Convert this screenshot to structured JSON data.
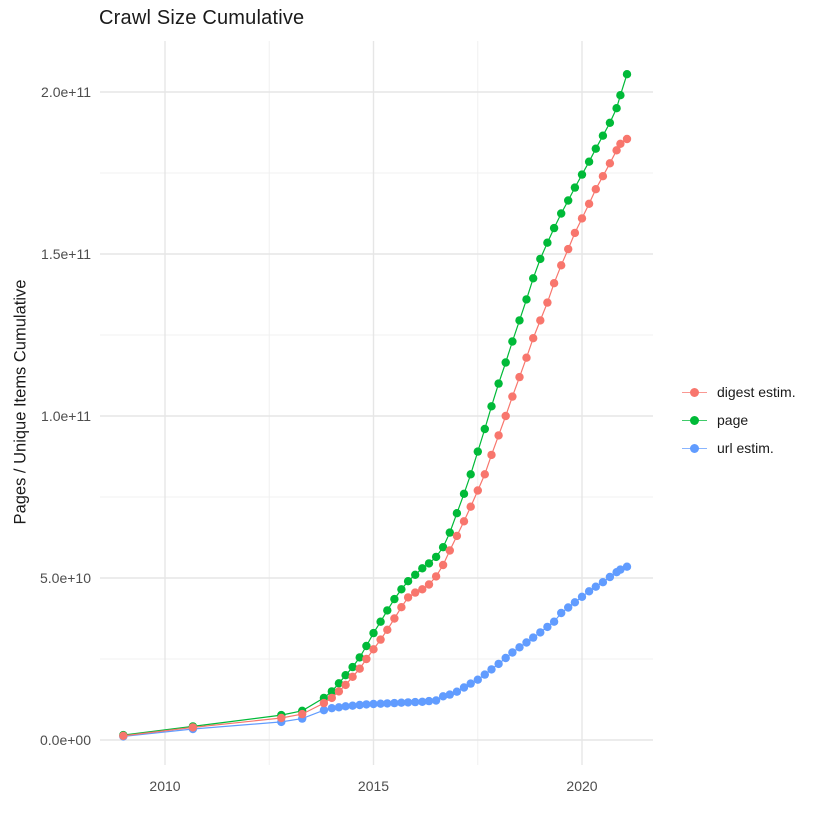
{
  "title": "Crawl Size Cumulative",
  "axes": {
    "x": {
      "major_ticks": [
        {
          "label": "2010",
          "year": 2010
        },
        {
          "label": "2015",
          "year": 2015
        },
        {
          "label": "2020",
          "year": 2020
        }
      ],
      "minor_years": [
        2012.5,
        2017.5
      ]
    },
    "y": {
      "label": "Pages / Unique Items Cumulative",
      "major_ticks": [
        {
          "label": "0.0e+00",
          "value_e9": 0
        },
        {
          "label": "5.0e+10",
          "value_e9": 50
        },
        {
          "label": "1.0e+11",
          "value_e9": 100
        },
        {
          "label": "1.5e+11",
          "value_e9": 150
        },
        {
          "label": "2.0e+11",
          "value_e9": 200
        }
      ],
      "minor_values_e9": [
        25,
        75,
        125,
        175
      ]
    }
  },
  "style": {
    "background": "#FFFFFF",
    "grid_major_color": "#E6E6E6",
    "grid_minor_color": "#F0F0F0",
    "tick_text_color": "#4D4D4D"
  },
  "chart_data": {
    "type": "line",
    "title": "Crawl Size Cumulative",
    "xlabel": "",
    "ylabel": "Pages / Unique Items Cumulative",
    "x_unit": "year (decimal)",
    "value_unit": "billions of pages / unique items (1e9)",
    "xlim": [
      2008.4,
      2021.7
    ],
    "ylim": [
      0,
      215
    ],
    "grid": true,
    "legend_position": "right",
    "marker": "point",
    "series": [
      {
        "name": "digest estim.",
        "color": "#F8766D",
        "points": [
          [
            2009.0,
            1.3
          ],
          [
            2010.67,
            3.9
          ],
          [
            2012.79,
            6.8
          ],
          [
            2013.29,
            8.0
          ],
          [
            2013.81,
            11.4
          ],
          [
            2014.0,
            13
          ],
          [
            2014.17,
            15
          ],
          [
            2014.33,
            17
          ],
          [
            2014.5,
            19.5
          ],
          [
            2014.67,
            22
          ],
          [
            2014.83,
            25
          ],
          [
            2015.0,
            28
          ],
          [
            2015.17,
            31
          ],
          [
            2015.33,
            34
          ],
          [
            2015.5,
            37.5
          ],
          [
            2015.67,
            41
          ],
          [
            2015.83,
            44
          ],
          [
            2016.0,
            45.5
          ],
          [
            2016.17,
            46.5
          ],
          [
            2016.33,
            48
          ],
          [
            2016.5,
            50.5
          ],
          [
            2016.67,
            54
          ],
          [
            2016.83,
            58.5
          ],
          [
            2017.0,
            63
          ],
          [
            2017.17,
            67.5
          ],
          [
            2017.33,
            72
          ],
          [
            2017.5,
            77
          ],
          [
            2017.67,
            82
          ],
          [
            2017.83,
            88
          ],
          [
            2018.0,
            94
          ],
          [
            2018.17,
            100
          ],
          [
            2018.33,
            106
          ],
          [
            2018.5,
            112
          ],
          [
            2018.67,
            118
          ],
          [
            2018.83,
            124
          ],
          [
            2019.0,
            129.5
          ],
          [
            2019.17,
            135
          ],
          [
            2019.33,
            141
          ],
          [
            2019.5,
            146.5
          ],
          [
            2019.67,
            151.5
          ],
          [
            2019.83,
            156.5
          ],
          [
            2020.0,
            161
          ],
          [
            2020.17,
            165.5
          ],
          [
            2020.33,
            170
          ],
          [
            2020.5,
            174
          ],
          [
            2020.67,
            178
          ],
          [
            2020.83,
            182
          ],
          [
            2020.92,
            184
          ],
          [
            2021.08,
            185.5
          ]
        ]
      },
      {
        "name": "page",
        "color": "#00BA38",
        "points": [
          [
            2009.0,
            1.5
          ],
          [
            2010.67,
            4.2
          ],
          [
            2012.79,
            7.7
          ],
          [
            2013.29,
            9.0
          ],
          [
            2013.81,
            13
          ],
          [
            2014.0,
            15
          ],
          [
            2014.17,
            17.5
          ],
          [
            2014.33,
            20
          ],
          [
            2014.5,
            22.5
          ],
          [
            2014.67,
            25.5
          ],
          [
            2014.83,
            29
          ],
          [
            2015.0,
            33
          ],
          [
            2015.17,
            36.5
          ],
          [
            2015.33,
            40
          ],
          [
            2015.5,
            43.5
          ],
          [
            2015.67,
            46.5
          ],
          [
            2015.83,
            49
          ],
          [
            2016.0,
            51
          ],
          [
            2016.17,
            53
          ],
          [
            2016.33,
            54.5
          ],
          [
            2016.5,
            56.5
          ],
          [
            2016.67,
            59.5
          ],
          [
            2016.83,
            64
          ],
          [
            2017.0,
            70
          ],
          [
            2017.17,
            76
          ],
          [
            2017.33,
            82
          ],
          [
            2017.5,
            89
          ],
          [
            2017.67,
            96
          ],
          [
            2017.83,
            103
          ],
          [
            2018.0,
            110
          ],
          [
            2018.17,
            116.5
          ],
          [
            2018.33,
            123
          ],
          [
            2018.5,
            129.5
          ],
          [
            2018.67,
            136
          ],
          [
            2018.83,
            142.5
          ],
          [
            2019.0,
            148.5
          ],
          [
            2019.17,
            153.5
          ],
          [
            2019.33,
            158
          ],
          [
            2019.5,
            162.5
          ],
          [
            2019.67,
            166.5
          ],
          [
            2019.83,
            170.5
          ],
          [
            2020.0,
            174.5
          ],
          [
            2020.17,
            178.5
          ],
          [
            2020.33,
            182.5
          ],
          [
            2020.5,
            186.5
          ],
          [
            2020.67,
            190.5
          ],
          [
            2020.83,
            195
          ],
          [
            2020.92,
            199
          ],
          [
            2021.08,
            205.5
          ]
        ]
      },
      {
        "name": "url estim.",
        "color": "#619CFF",
        "points": [
          [
            2009.0,
            1.1
          ],
          [
            2010.67,
            3.4
          ],
          [
            2012.79,
            5.6
          ],
          [
            2013.29,
            6.6
          ],
          [
            2013.81,
            9.2
          ],
          [
            2014.0,
            9.8
          ],
          [
            2014.17,
            10.1
          ],
          [
            2014.33,
            10.4
          ],
          [
            2014.5,
            10.6
          ],
          [
            2014.67,
            10.8
          ],
          [
            2014.83,
            11.0
          ],
          [
            2015.0,
            11.1
          ],
          [
            2015.17,
            11.2
          ],
          [
            2015.33,
            11.3
          ],
          [
            2015.5,
            11.4
          ],
          [
            2015.67,
            11.5
          ],
          [
            2015.83,
            11.6
          ],
          [
            2016.0,
            11.7
          ],
          [
            2016.17,
            11.8
          ],
          [
            2016.33,
            12.0
          ],
          [
            2016.5,
            12.2
          ],
          [
            2016.67,
            13.5
          ],
          [
            2016.83,
            14.0
          ],
          [
            2017.0,
            14.9
          ],
          [
            2017.17,
            16.2
          ],
          [
            2017.33,
            17.4
          ],
          [
            2017.5,
            18.6
          ],
          [
            2017.67,
            20.2
          ],
          [
            2017.83,
            21.8
          ],
          [
            2018.0,
            23.5
          ],
          [
            2018.17,
            25.3
          ],
          [
            2018.33,
            27.0
          ],
          [
            2018.5,
            28.6
          ],
          [
            2018.67,
            30.1
          ],
          [
            2018.83,
            31.6
          ],
          [
            2019.0,
            33.2
          ],
          [
            2019.17,
            34.9
          ],
          [
            2019.33,
            36.5
          ],
          [
            2019.5,
            39.2
          ],
          [
            2019.67,
            40.9
          ],
          [
            2019.83,
            42.5
          ],
          [
            2020.0,
            44.2
          ],
          [
            2020.17,
            45.9
          ],
          [
            2020.33,
            47.3
          ],
          [
            2020.5,
            48.7
          ],
          [
            2020.67,
            50.3
          ],
          [
            2020.83,
            51.8
          ],
          [
            2020.92,
            52.6
          ],
          [
            2021.08,
            53.5
          ]
        ]
      }
    ]
  }
}
